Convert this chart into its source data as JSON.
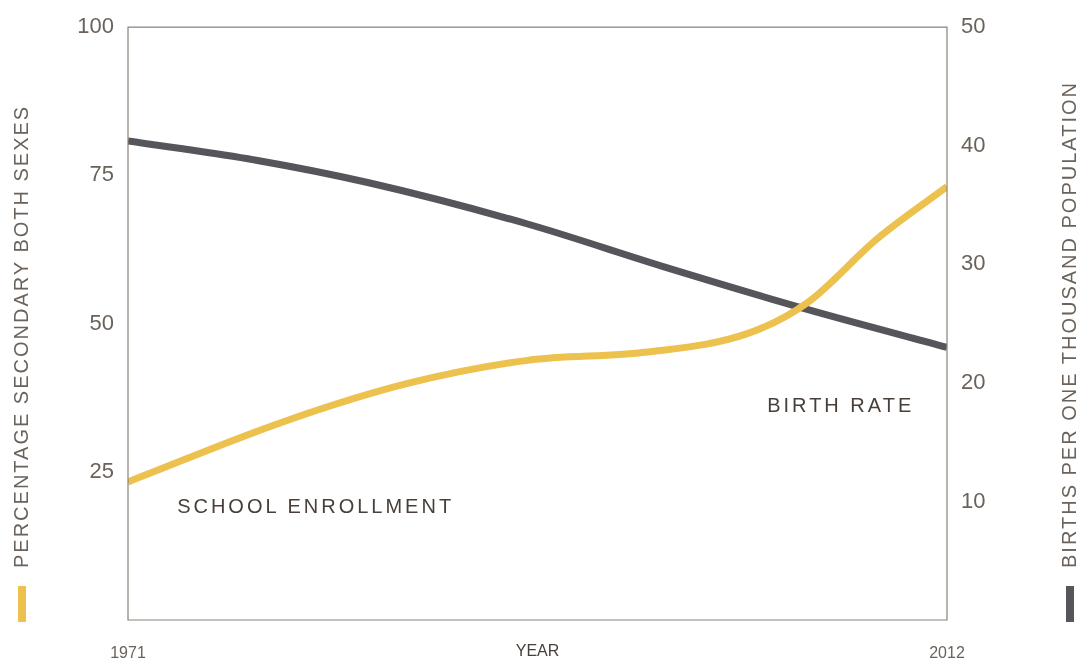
{
  "chart_data": {
    "type": "line",
    "xlabel": "YEAR",
    "ylabel": "PERCENTAGE SECONDARY BOTH SEXES",
    "y2label": "BIRTHS PER ONE THOUSAND POPULATION",
    "xlim": [
      1971,
      2012
    ],
    "xticks": [
      1971,
      2012
    ],
    "ylim": [
      0,
      100
    ],
    "yticks": [
      25,
      50,
      75,
      100
    ],
    "y2lim": [
      0,
      50
    ],
    "y2ticks": [
      10,
      20,
      30,
      40,
      50
    ],
    "grid": false,
    "legend": false,
    "marker": "none",
    "line_style": "solid",
    "series": [
      {
        "name": "SCHOOL ENROLLMENT",
        "color": "#ecc14e",
        "axis": "y",
        "x": [
          1971,
          1979,
          1985,
          1991,
          1997,
          2002,
          2005,
          2008.5,
          2012
        ],
        "values": [
          23.3,
          33.7,
          39.9,
          43.8,
          45.2,
          48.3,
          53.5,
          64.3,
          73.1
        ]
      },
      {
        "name": "BIRTH RATE",
        "color": "#55565b",
        "axis": "y2",
        "x": [
          1971,
          1977,
          1983,
          1991,
          1998,
          2005,
          2012
        ],
        "values": [
          40.4,
          38.9,
          36.9,
          33.4,
          29.7,
          26.2,
          23.0
        ]
      }
    ]
  }
}
